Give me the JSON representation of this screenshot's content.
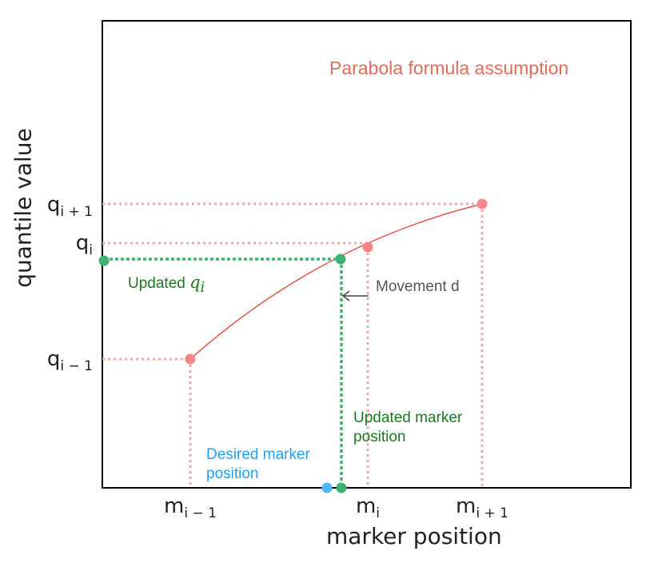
{
  "chart_data": {
    "type": "diagram",
    "xlabel": "marker position",
    "ylabel": "quantile value",
    "x_ticks": [
      {
        "base": "m",
        "sub": "i − 1"
      },
      {
        "base": "m",
        "sub": "i"
      },
      {
        "base": "m",
        "sub": "i + 1"
      }
    ],
    "y_ticks": [
      {
        "base": "q",
        "sub": "i + 1"
      },
      {
        "base": "q",
        "sub": "i"
      },
      {
        "base": "q",
        "sub": "i − 1"
      }
    ],
    "annotations": {
      "parabola": "Parabola formula assumption",
      "movement": "Movement d",
      "updated_marker_line1": "Updated marker",
      "updated_marker_line2": "position",
      "desired_marker_line1": "Desired marker",
      "desired_marker_line2": "position",
      "updated_q_prefix": "Updated",
      "updated_q_symbol": "q",
      "updated_q_sub": "i"
    },
    "colors": {
      "curve": "#e8524a",
      "markers": "#f4868a",
      "guides": "#f0aaa8",
      "updated": "#3cb371",
      "desired": "#4db8ff",
      "axis": "#000000"
    }
  }
}
